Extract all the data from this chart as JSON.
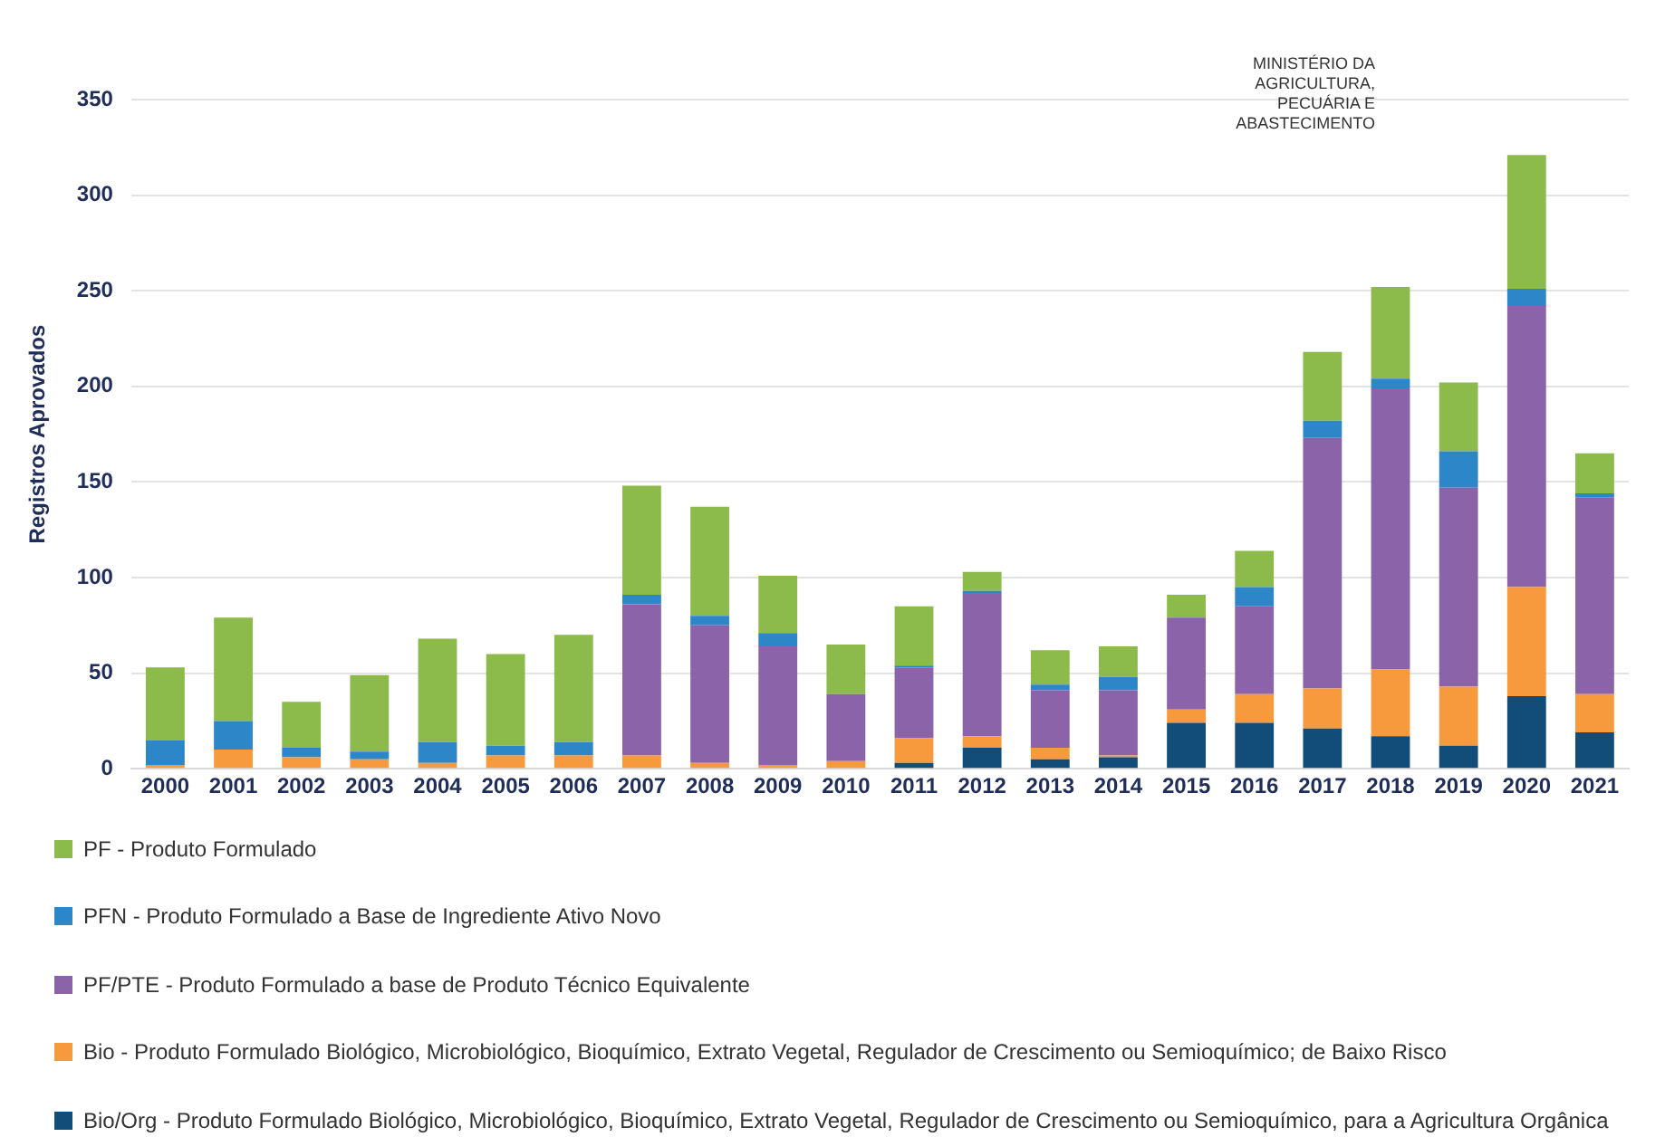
{
  "chart_data": {
    "type": "bar",
    "stacked": true,
    "ylabel": "Registros Aprovados",
    "categories": [
      "2000",
      "2001",
      "2002",
      "2003",
      "2004",
      "2005",
      "2006",
      "2007",
      "2008",
      "2009",
      "2010",
      "2011",
      "2012",
      "2013",
      "2014",
      "2015",
      "2016",
      "2017",
      "2018",
      "2019",
      "2020",
      "2021"
    ],
    "series": [
      {
        "name": "Bio/Org - Produto Formulado Biológico, Microbiológico, Bioquímico, Extrato Vegetal, Regulador de Crescimento ou Semioquímico, para a Agricultura Orgânica",
        "color": "#124d79",
        "values": [
          0,
          0,
          0,
          0,
          0,
          0,
          0,
          0,
          0,
          0,
          0,
          3,
          11,
          5,
          6,
          24,
          24,
          21,
          17,
          12,
          38,
          19
        ]
      },
      {
        "name": "Bio - Produto Formulado Biológico, Microbiológico, Bioquímico, Extrato Vegetal, Regulador de Crescimento ou Semioquímico; de Baixo Risco",
        "color": "#f79a3e",
        "values": [
          2,
          10,
          6,
          5,
          3,
          7,
          7,
          7,
          3,
          2,
          4,
          13,
          6,
          6,
          1,
          7,
          15,
          21,
          35,
          31,
          57,
          20
        ]
      },
      {
        "name": "PF/PTE - Produto Formulado a base de Produto Técnico Equivalente",
        "color": "#8b63a8",
        "values": [
          0,
          0,
          0,
          0,
          0,
          0,
          0,
          79,
          72,
          62,
          35,
          37,
          75,
          30,
          34,
          48,
          46,
          131,
          147,
          104,
          147,
          103
        ]
      },
      {
        "name": "PFN - Produto Formulado a Base de Ingrediente Ativo Novo",
        "color": "#2c86c8",
        "values": [
          13,
          15,
          5,
          4,
          11,
          5,
          7,
          5,
          5,
          7,
          0,
          1,
          1,
          3,
          7,
          0,
          10,
          9,
          5,
          19,
          9,
          2
        ]
      },
      {
        "name": "PF - Produto Formulado",
        "color": "#8cbb4c",
        "values": [
          38,
          54,
          24,
          40,
          54,
          48,
          56,
          57,
          57,
          30,
          26,
          31,
          10,
          18,
          16,
          12,
          19,
          36,
          48,
          36,
          70,
          21
        ]
      }
    ],
    "ylim": [
      0,
      350
    ],
    "yticks": [
      0,
      50,
      100,
      150,
      200,
      250,
      300,
      350
    ],
    "grid": "y",
    "legend": "bottom",
    "annotations": [
      "MINISTÉRIO DA AGRICULTURA, PECUÁRIA E ABASTECIMENTO"
    ]
  }
}
